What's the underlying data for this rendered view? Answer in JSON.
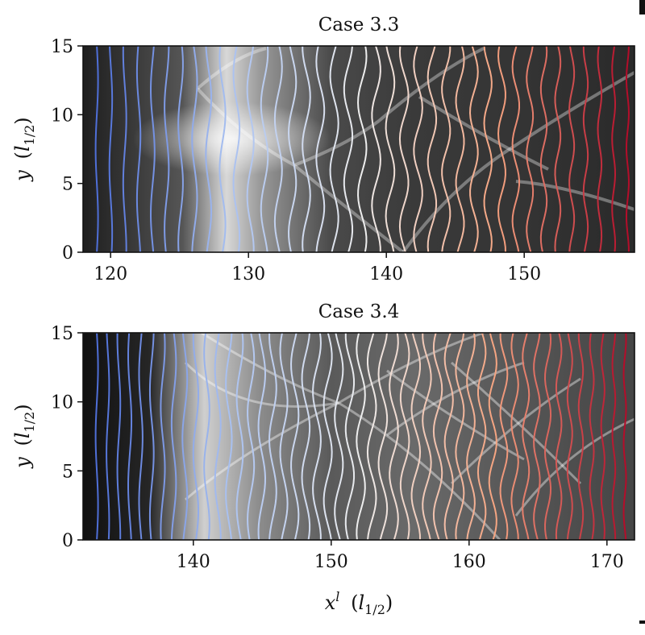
{
  "chart_data": [
    {
      "type": "heatmap",
      "title": "Case 3.3",
      "xlabel": "",
      "ylabel": "y (l1/2)",
      "xlim": [
        118,
        158
      ],
      "ylim": [
        0,
        15
      ],
      "xticks": [
        120,
        130,
        140,
        150
      ],
      "yticks": [
        0,
        5,
        10,
        15
      ],
      "xtick_labels": [
        "120",
        "130",
        "140",
        "150"
      ],
      "ytick_labels": [
        "0",
        "5",
        "10",
        "15"
      ],
      "contour_lines": {
        "x_start": 119,
        "x_end": 157.5,
        "count": 39,
        "colormap": [
          "#4f6fd8",
          "#a8c0f0",
          "#eeeeee",
          "#f5a582",
          "#b40d2a"
        ]
      },
      "grid": false
    },
    {
      "type": "heatmap",
      "title": "Case 3.4",
      "xlabel": "x^l (l1/2)",
      "ylabel": "y (l1/2)",
      "xlim": [
        132,
        172
      ],
      "ylim": [
        0,
        15
      ],
      "xticks": [
        140,
        150,
        160,
        170
      ],
      "yticks": [
        0,
        5,
        10,
        15
      ],
      "xtick_labels": [
        "140",
        "150",
        "160",
        "170"
      ],
      "ytick_labels": [
        "0",
        "5",
        "10",
        "15"
      ],
      "contour_lines": {
        "x_start": 133,
        "x_end": 171.3,
        "count": 49,
        "colormap": [
          "#4f6fd8",
          "#a8c0f0",
          "#eeeeee",
          "#f5a582",
          "#b40d2a"
        ]
      },
      "grid": false
    }
  ],
  "labels": {
    "title_top": "Case 3.3",
    "title_bottom": "Case 3.4",
    "ylabel_var": "y",
    "ylabel_unit_open": "(",
    "ylabel_unit_l": "l",
    "ylabel_unit_sub": "1/2",
    "ylabel_unit_close": ")",
    "xlabel_var": "x",
    "xlabel_sup": "l"
  }
}
